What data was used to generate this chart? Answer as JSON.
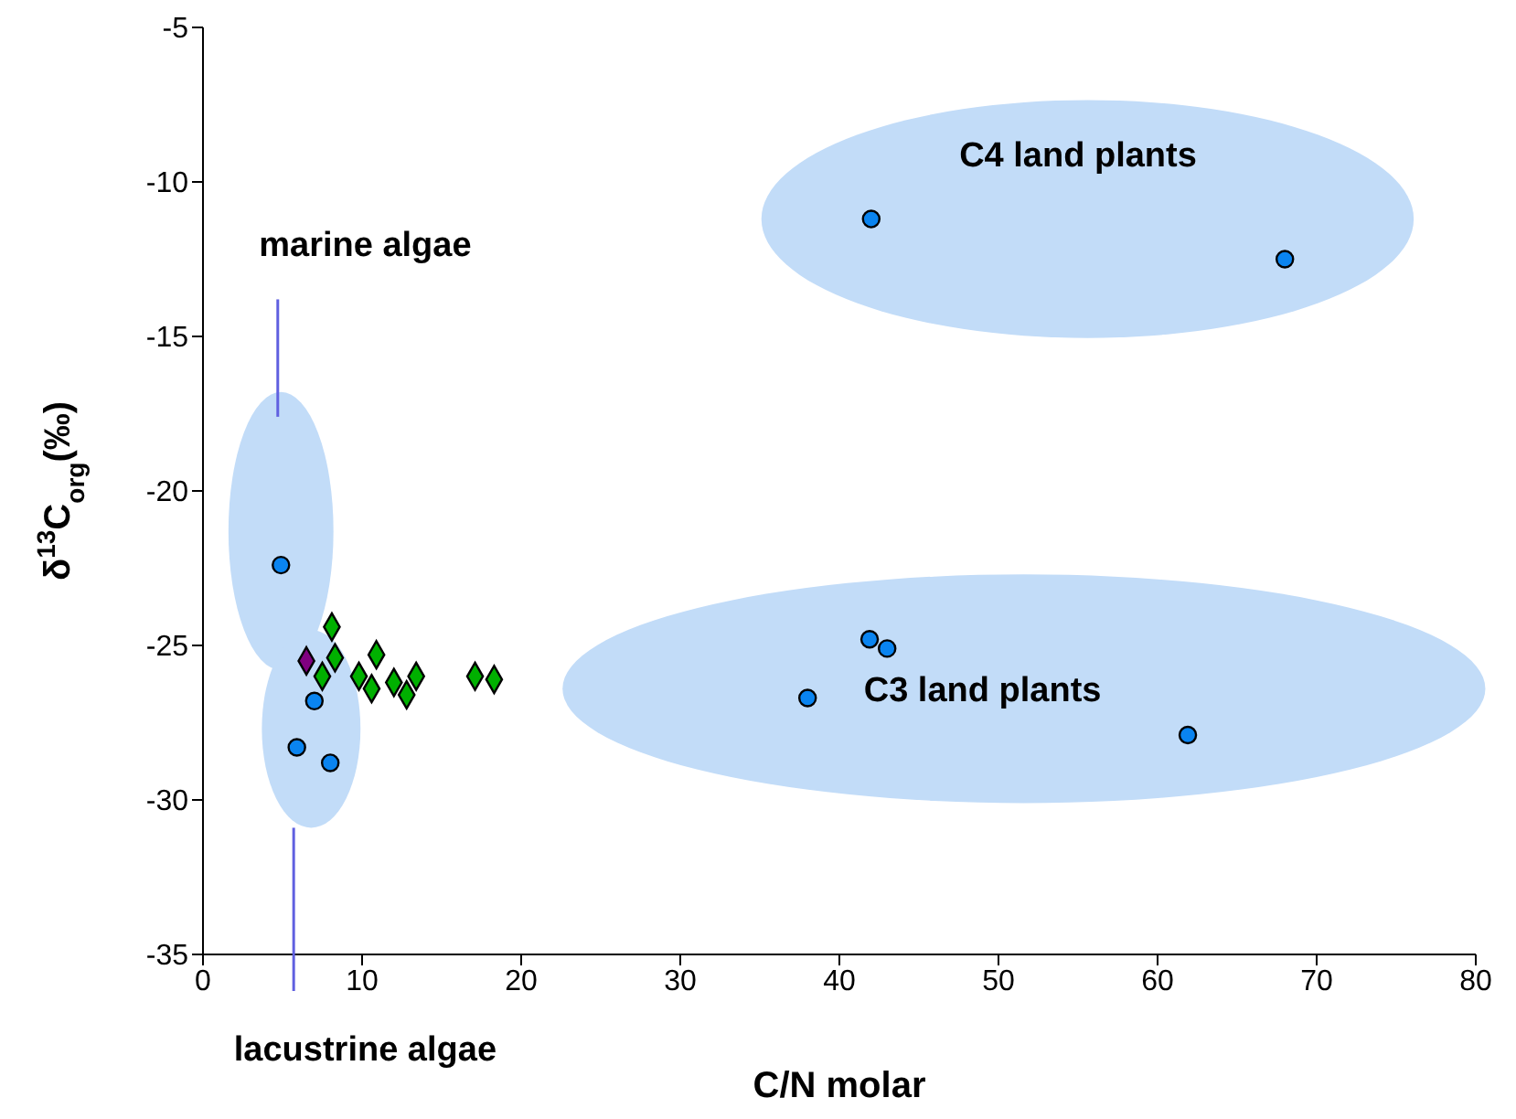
{
  "chart_data": {
    "type": "scatter",
    "xlabel": "C/N molar",
    "ylabel": "δ$^{13}$C$_{org}$(‰)",
    "xlim": [
      0,
      80
    ],
    "xticks": [
      0,
      10,
      20,
      30,
      40,
      50,
      60,
      70,
      80
    ],
    "ylim": [
      -35,
      -5
    ],
    "yticks": [
      -35,
      -30,
      -25,
      -20,
      -15,
      -10,
      -5
    ],
    "series": [
      {
        "color": "#0a84f0",
        "marker": "circle",
        "x": [
          4.9,
          7.0,
          5.9,
          8.0,
          42.0,
          68.0,
          41.9,
          43.0,
          38.0,
          61.9
        ],
        "values": [
          -22.4,
          -26.8,
          -28.3,
          -28.8,
          -11.2,
          -12.5,
          -24.8,
          -25.1,
          -26.7,
          -27.9
        ]
      },
      {
        "color": "#00b000",
        "marker": "diamond",
        "x": [
          8.1,
          8.3,
          7.5,
          9.8,
          10.9,
          10.6,
          12.0,
          13.4,
          12.8,
          17.1,
          18.3
        ],
        "values": [
          -24.4,
          -25.4,
          -26.0,
          -26.0,
          -25.3,
          -26.4,
          -26.2,
          -26.0,
          -26.6,
          -26.0,
          -26.1
        ]
      },
      {
        "color": "#800080",
        "marker": "diamond",
        "x": [
          6.5
        ],
        "values": [
          -25.5
        ]
      }
    ],
    "annotations": [
      "C4 land plants",
      "C3 land plants",
      "marine algae",
      "lacustrine algae"
    ]
  }
}
